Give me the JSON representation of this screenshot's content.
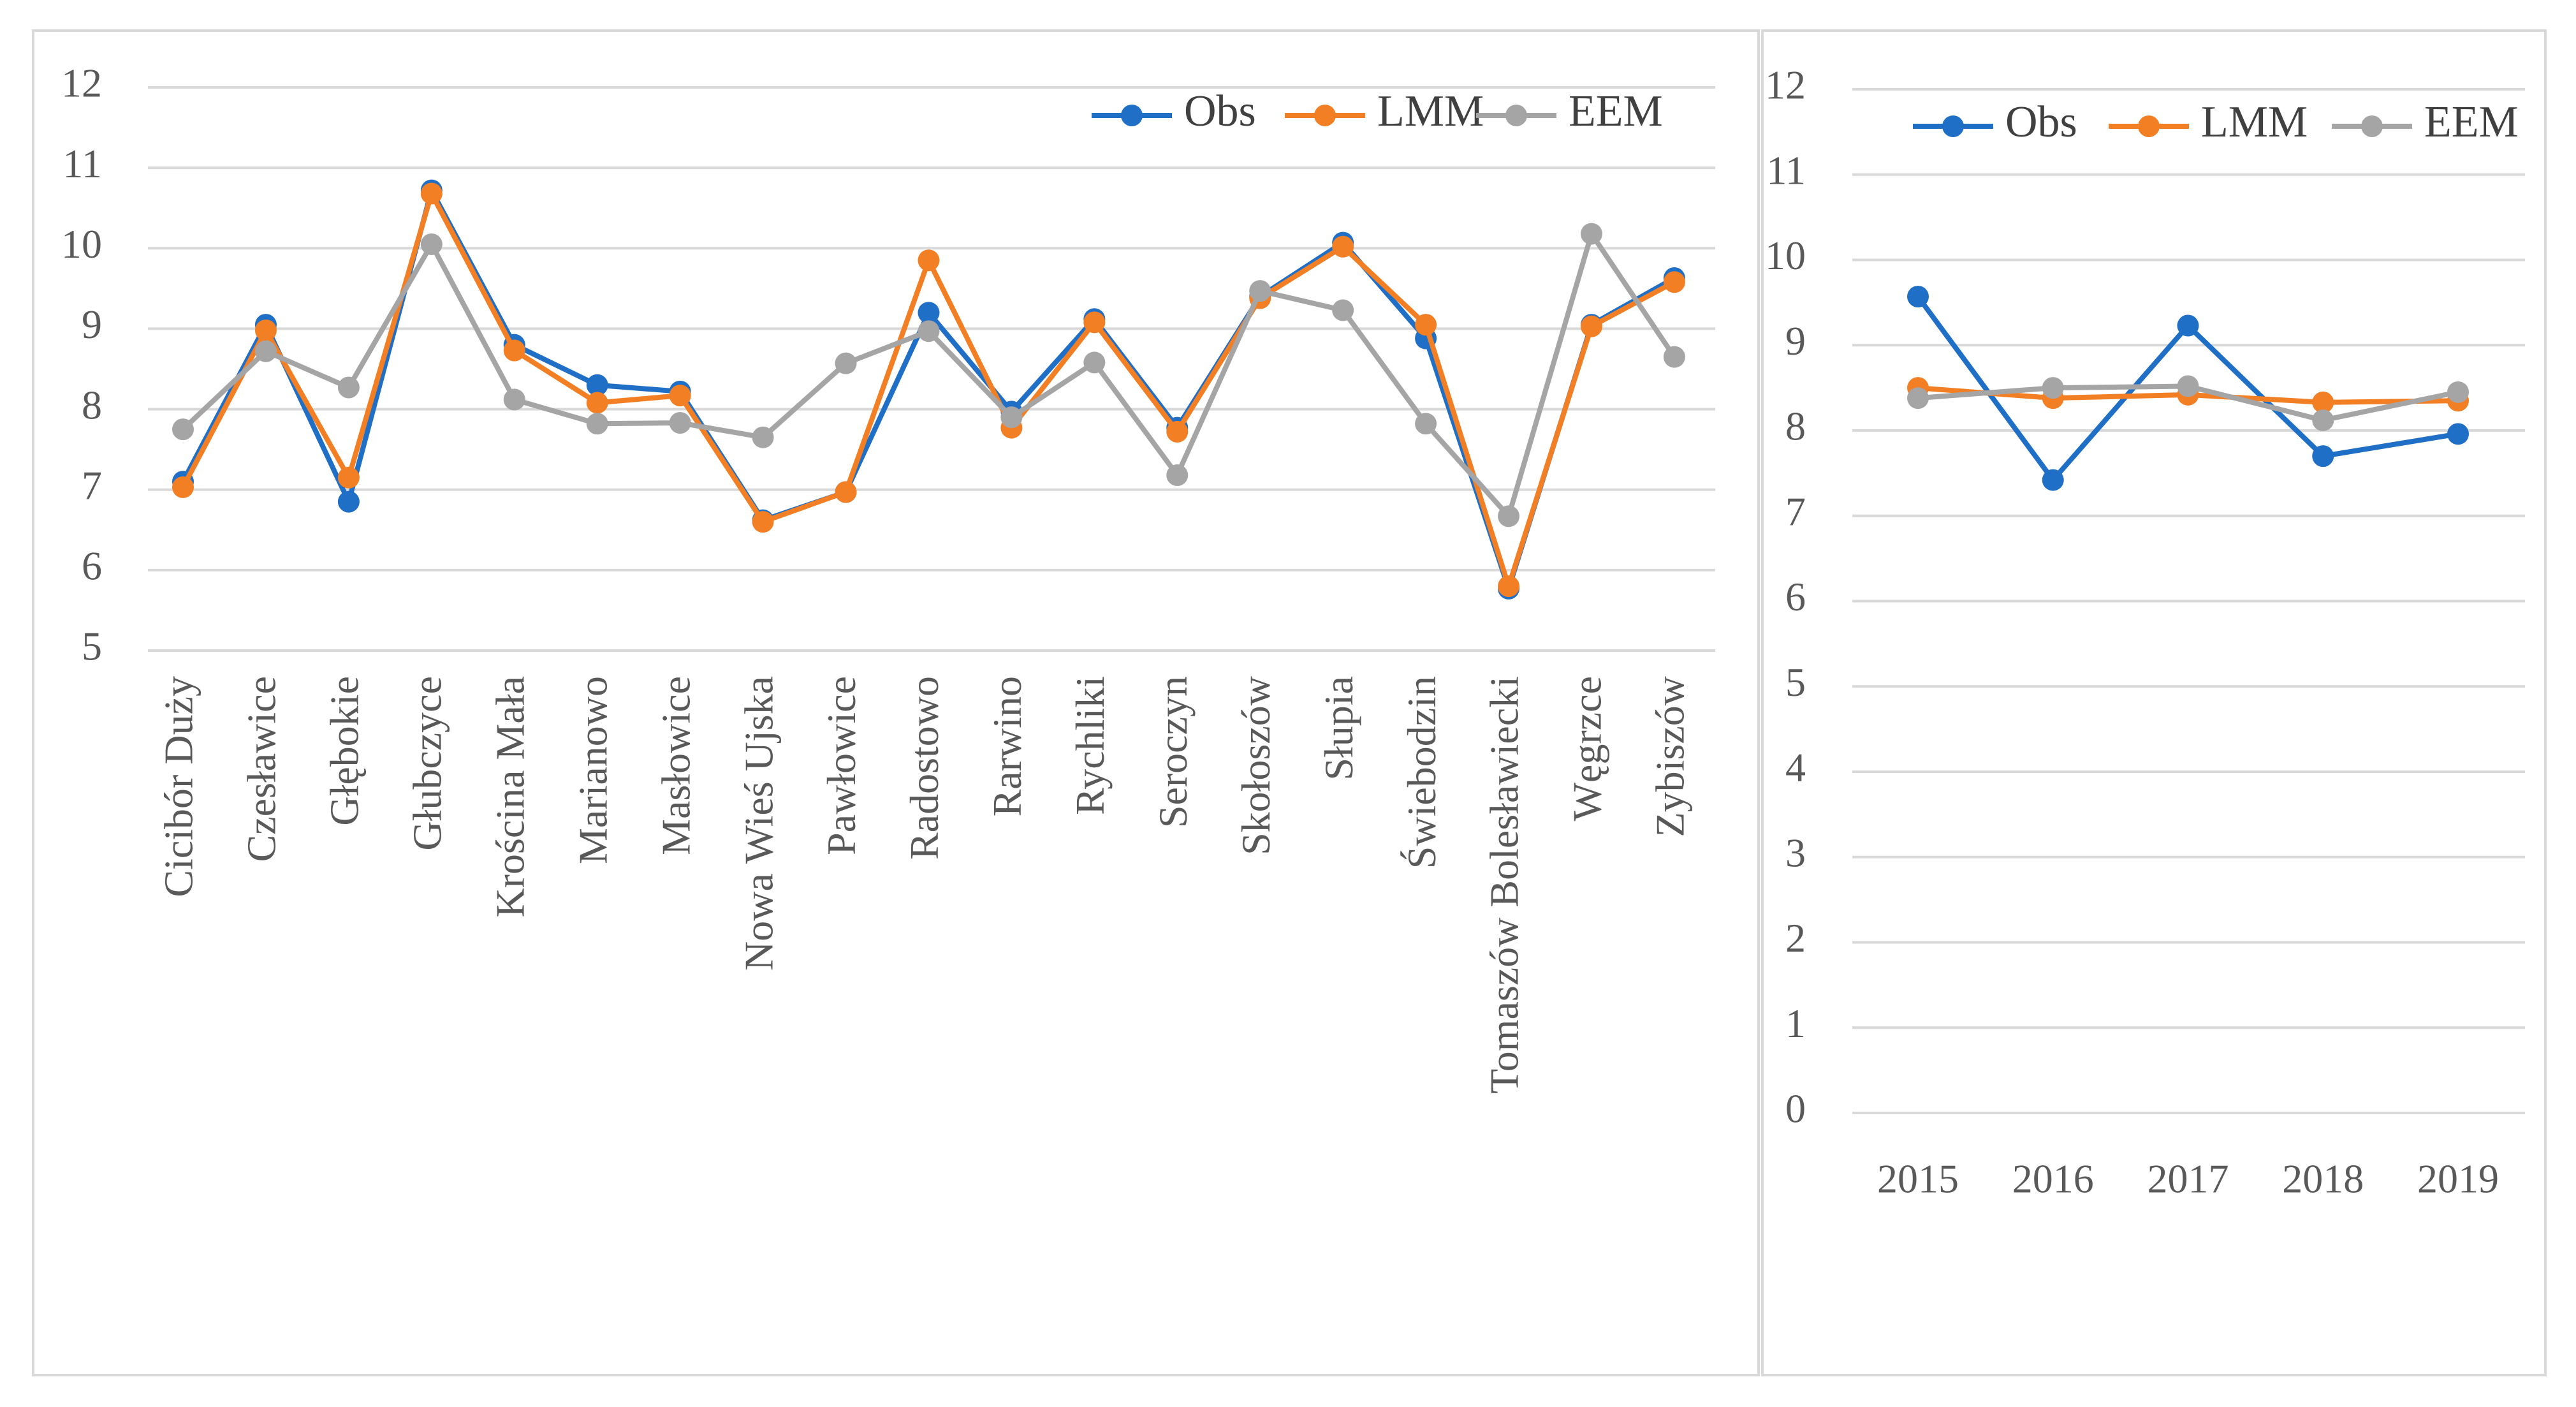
{
  "colors": {
    "Obs": "#1f6fc6",
    "LMM": "#f37f25",
    "EEM": "#a5a5a5"
  },
  "chart_data": [
    {
      "type": "line",
      "title": "",
      "xlabel": "",
      "ylabel": "",
      "ylim": [
        5,
        12
      ],
      "yticks": [
        "5",
        "6",
        "7",
        "8",
        "9",
        "10",
        "11",
        "12"
      ],
      "grid": true,
      "legend_position": "top-right",
      "categories": [
        "Cicibór Duży",
        "Czesławice",
        "Głębokie",
        "Głubczyce",
        "Krościna Mała",
        "Marianowo",
        "Masłowice",
        "Nowa Wieś Ujska",
        "Pawłowice",
        "Radostowo",
        "Rarwino",
        "Rychliki",
        "Seroczyn",
        "Skołoszów",
        "Słupia",
        "Świebodzin",
        "Tomaszów Bolesławiecki",
        "Węgrzce",
        "Zybiszów"
      ],
      "series": [
        {
          "name": "Obs",
          "values": [
            7.1,
            9.05,
            6.85,
            10.72,
            8.8,
            8.3,
            8.22,
            6.62,
            6.97,
            9.2,
            7.97,
            9.12,
            7.77,
            9.4,
            10.07,
            8.88,
            5.77,
            9.05,
            9.63
          ]
        },
        {
          "name": "LMM",
          "values": [
            7.03,
            8.98,
            7.15,
            10.68,
            8.73,
            8.08,
            8.17,
            6.6,
            6.97,
            9.85,
            7.77,
            9.08,
            7.72,
            9.38,
            10.02,
            9.05,
            5.8,
            9.03,
            9.58
          ]
        },
        {
          "name": "EEM",
          "values": [
            7.75,
            8.72,
            8.27,
            10.05,
            8.12,
            7.82,
            7.83,
            7.65,
            8.57,
            8.97,
            7.9,
            8.58,
            7.18,
            9.47,
            9.23,
            7.82,
            6.67,
            10.18,
            8.65
          ]
        }
      ]
    },
    {
      "type": "line",
      "title": "",
      "xlabel": "",
      "ylabel": "",
      "ylim": [
        0,
        12
      ],
      "yticks": [
        "0",
        "1",
        "2",
        "3",
        "4",
        "5",
        "6",
        "7",
        "8",
        "9",
        "10",
        "11",
        "12"
      ],
      "grid": true,
      "legend_position": "top",
      "categories": [
        "2015",
        "2016",
        "2017",
        "2018",
        "2019"
      ],
      "series": [
        {
          "name": "Obs",
          "values": [
            9.57,
            7.42,
            9.23,
            7.7,
            7.96
          ]
        },
        {
          "name": "LMM",
          "values": [
            8.5,
            8.38,
            8.42,
            8.33,
            8.35
          ]
        },
        {
          "name": "EEM",
          "values": [
            8.38,
            8.5,
            8.52,
            8.12,
            8.45
          ]
        }
      ]
    }
  ]
}
